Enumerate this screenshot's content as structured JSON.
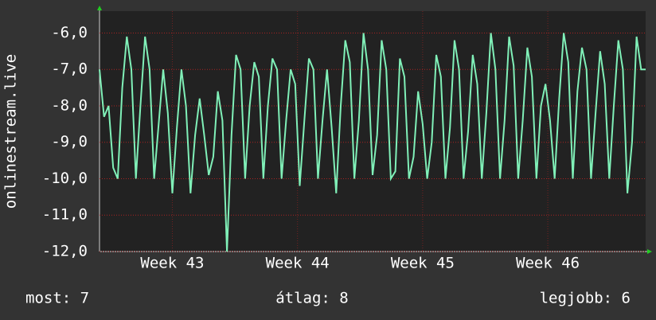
{
  "chart_data": {
    "type": "line",
    "y_label": "onlinestream.live",
    "ylim": [
      -12,
      -5.4
    ],
    "yticks": [
      {
        "value": -12,
        "label": "-12,0"
      },
      {
        "value": -11,
        "label": "-11,0"
      },
      {
        "value": -10,
        "label": "-10,0"
      },
      {
        "value": -9,
        "label": "-9,0"
      },
      {
        "value": -8,
        "label": "-8,0"
      },
      {
        "value": -7,
        "label": "-7,0"
      },
      {
        "value": -6,
        "label": "-6,0"
      }
    ],
    "xlim": [
      0,
      120
    ],
    "xticks": [
      {
        "value": 16,
        "label": "Week 43"
      },
      {
        "value": 43.5,
        "label": "Week 44"
      },
      {
        "value": 71,
        "label": "Week 45"
      },
      {
        "value": 98.5,
        "label": "Week 46"
      }
    ],
    "grid": true,
    "series": [
      {
        "color": "#80f0b8",
        "values": [
          -7.0,
          -8.3,
          -8.0,
          -9.7,
          -10.0,
          -7.5,
          -6.1,
          -7.0,
          -10.0,
          -8.0,
          -6.1,
          -7.0,
          -10.0,
          -8.5,
          -7.0,
          -8.2,
          -10.4,
          -8.6,
          -7.0,
          -8.0,
          -10.4,
          -8.8,
          -7.8,
          -8.8,
          -9.9,
          -9.4,
          -7.6,
          -8.4,
          -12.0,
          -8.8,
          -6.6,
          -7.0,
          -10.0,
          -8.0,
          -6.8,
          -7.2,
          -10.0,
          -8.0,
          -6.7,
          -7.0,
          -10.0,
          -8.4,
          -7.0,
          -7.4,
          -10.2,
          -8.4,
          -6.7,
          -7.0,
          -10.0,
          -8.4,
          -7.0,
          -8.6,
          -10.4,
          -8.0,
          -6.2,
          -6.8,
          -10.0,
          -8.4,
          -6.0,
          -7.0,
          -9.9,
          -8.8,
          -6.2,
          -7.0,
          -10.0,
          -9.8,
          -6.7,
          -7.2,
          -10.0,
          -9.4,
          -7.6,
          -8.5,
          -10.0,
          -9.0,
          -6.6,
          -7.2,
          -10.0,
          -8.6,
          -6.2,
          -7.0,
          -10.0,
          -8.7,
          -6.6,
          -7.4,
          -10.0,
          -8.2,
          -6.0,
          -7.0,
          -10.0,
          -8.4,
          -6.1,
          -6.9,
          -10.0,
          -8.4,
          -6.4,
          -7.2,
          -10.0,
          -8.0,
          -7.4,
          -8.4,
          -10.0,
          -7.8,
          -6.0,
          -6.8,
          -10.0,
          -7.6,
          -6.4,
          -7.0,
          -10.0,
          -8.2,
          -6.5,
          -7.4,
          -10.0,
          -8.0,
          -6.2,
          -7.0,
          -10.4,
          -9.0,
          -6.1,
          -7.0,
          -7.0
        ]
      }
    ],
    "footer": [
      "most: 7",
      "átlag: 8",
      "legjobb: 6"
    ]
  }
}
